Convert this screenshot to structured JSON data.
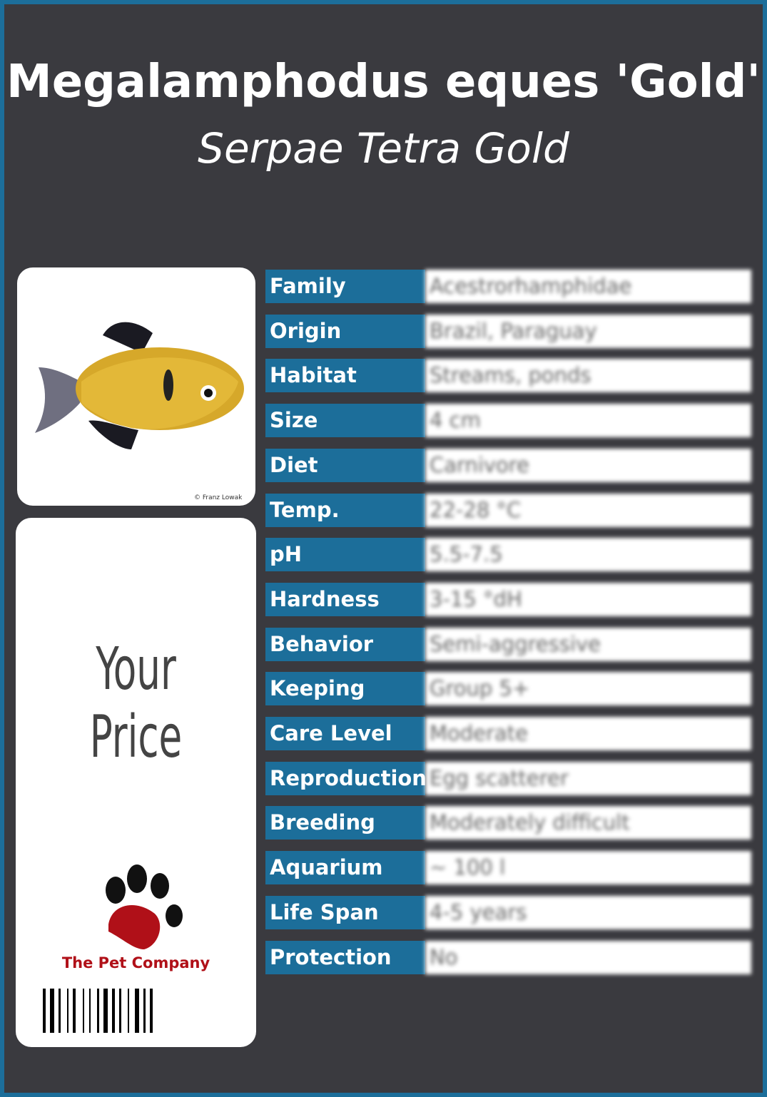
{
  "header": {
    "title": "Megalamphodus eques 'Gold'",
    "subtitle": "Serpae Tetra Gold"
  },
  "image": {
    "credit": "© Franz Lowak"
  },
  "price": {
    "label": "Your Price"
  },
  "logo": {
    "name": "The Pet Company"
  },
  "table": {
    "rows": [
      [
        "Family",
        "Acestrorhamphidae"
      ],
      [
        "Origin",
        "Brazil, Paraguay"
      ],
      [
        "Habitat",
        "Streams, ponds"
      ],
      [
        "Size",
        "4 cm"
      ],
      [
        "Diet",
        "Carnivore"
      ],
      [
        "Temp.",
        "22-28 °C"
      ],
      [
        "pH",
        "5.5-7.5"
      ],
      [
        "Hardness",
        "3-15 °dH"
      ],
      [
        "Behavior",
        "Semi-aggressive"
      ],
      [
        "Keeping",
        "Group 5+"
      ],
      [
        "Care Level",
        "Moderate"
      ],
      [
        "Reproduction",
        "Egg scatterer"
      ],
      [
        "Breeding",
        "Moderately difficult"
      ],
      [
        "Aquarium",
        "~ 100 l"
      ],
      [
        "Life Span",
        "4-5 years"
      ],
      [
        "Protection",
        "No"
      ]
    ]
  }
}
